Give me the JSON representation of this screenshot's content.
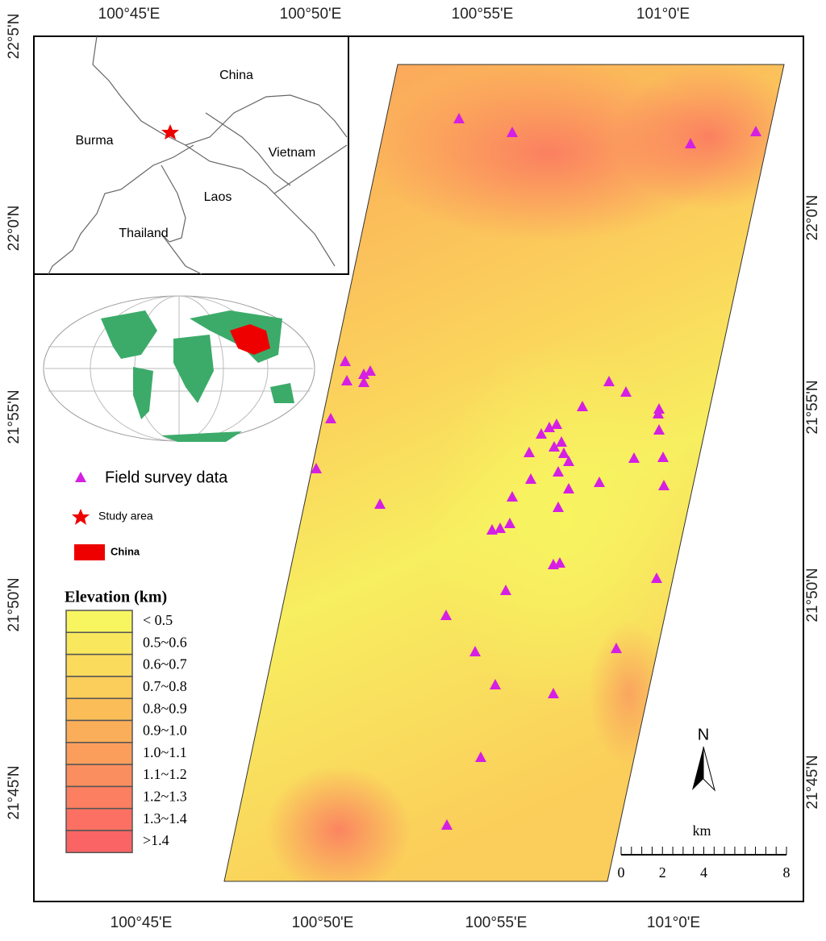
{
  "axes": {
    "top": [
      "100°45'E",
      "100°50'E",
      "100°55'E",
      "101°0'E"
    ],
    "bottom": [
      "100°45'E",
      "100°50'E",
      "100°55'E",
      "101°0'E"
    ],
    "left": [
      "22°5'N",
      "22°0'N",
      "21°55'N",
      "21°50'N",
      "21°45'N"
    ],
    "right": [
      "22°0'N",
      "21°55'N",
      "21°50'N",
      "21°45'N"
    ]
  },
  "inset": {
    "labels": [
      "China",
      "Burma",
      "Vietnam",
      "Laos",
      "Thailand"
    ]
  },
  "legend": {
    "survey": "Field survey data",
    "study": "Study area",
    "china": "China"
  },
  "elevation": {
    "title": "Elevation (km)",
    "classes": [
      {
        "label": "< 0.5",
        "color": "#f7f560"
      },
      {
        "label": "0.5~0.6",
        "color": "#f9e85e"
      },
      {
        "label": "0.6~0.7",
        "color": "#fadb5c"
      },
      {
        "label": "0.7~0.8",
        "color": "#fbcd5a"
      },
      {
        "label": "0.8~0.9",
        "color": "#fbbd58"
      },
      {
        "label": "0.9~1.0",
        "color": "#fbae5a"
      },
      {
        "label": "1.0~1.1",
        "color": "#fb9e5c"
      },
      {
        "label": "1.1~1.2",
        "color": "#fb8e5e"
      },
      {
        "label": "1.2~1.3",
        "color": "#fb7f60"
      },
      {
        "label": "1.3~1.4",
        "color": "#fb7062"
      },
      {
        "label": ">1.4",
        "color": "#fb6464"
      }
    ]
  },
  "north": "N",
  "scale_bar": {
    "unit": "km",
    "ticks": [
      0,
      2,
      4,
      8
    ],
    "max": 8
  }
}
